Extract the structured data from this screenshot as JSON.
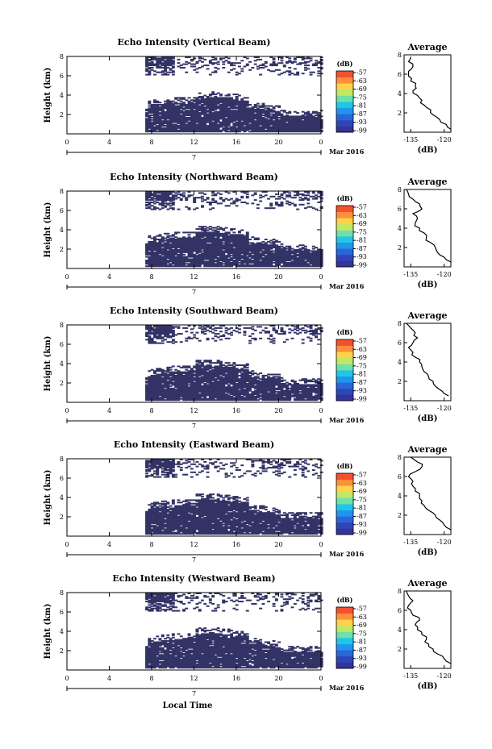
{
  "colors": {
    "echo": "#333366",
    "scale": [
      "#333399",
      "#2f46b8",
      "#2a66d8",
      "#1f95ee",
      "#20c6e8",
      "#6fe0a8",
      "#c0e866",
      "#ffd24a",
      "#ff8f3a",
      "#f5502e"
    ]
  },
  "chart_data": [
    {
      "type": "heatmap",
      "title": "Echo Intensity (Vertical Beam)",
      "ylabel": "Height (km)",
      "xticks": [
        "0",
        "4",
        "8",
        "12",
        "16",
        "20",
        "0"
      ],
      "yticks": [
        "8",
        "6",
        "4",
        "2"
      ],
      "xlim": [
        0,
        24
      ],
      "ylim": [
        0,
        8
      ],
      "date_tick": "7",
      "month_label": "Mar 2016",
      "colorbar": {
        "unit": "(dB)",
        "ticks": [
          "-57",
          "-63",
          "-69",
          "-75",
          "-81",
          "-87",
          "-93",
          "-99"
        ]
      },
      "average": {
        "title": "Average",
        "xlabel": "(dB)",
        "xticks": [
          "-135",
          "-120"
        ],
        "yticks": [
          "8",
          "6",
          "4",
          "2"
        ],
        "xlim": [
          -138,
          -117
        ],
        "height": [
          0.3,
          0.8,
          1.3,
          1.8,
          2.3,
          2.8,
          3.3,
          3.8,
          4.3,
          4.8,
          5.3,
          5.8,
          6.3,
          6.8,
          7.3,
          7.8
        ],
        "db": [
          -117,
          -119,
          -122,
          -125,
          -126,
          -129,
          -130,
          -132,
          -134,
          -133,
          -135,
          -136,
          -136,
          -134,
          -136,
          -135
        ]
      }
    },
    {
      "type": "heatmap",
      "title": "Echo Intensity (Northward Beam)",
      "ylabel": "Height (km)",
      "xticks": [
        "0",
        "4",
        "8",
        "12",
        "16",
        "20",
        "0"
      ],
      "yticks": [
        "8",
        "6",
        "4",
        "2"
      ],
      "xlim": [
        0,
        24
      ],
      "ylim": [
        0,
        8
      ],
      "date_tick": "7",
      "month_label": "Mar 2016",
      "colorbar": {
        "unit": "(dB)",
        "ticks": [
          "-57",
          "-63",
          "-69",
          "-75",
          "-81",
          "-87",
          "-93",
          "-99"
        ]
      },
      "average": {
        "title": "Average",
        "xlabel": "(dB)",
        "xticks": [
          "-135",
          "-120"
        ],
        "yticks": [
          "8",
          "6",
          "4",
          "2"
        ],
        "xlim": [
          -138,
          -117
        ],
        "height": [
          0.5,
          1.0,
          1.5,
          2.0,
          2.5,
          3.0,
          3.5,
          4.0,
          4.5,
          5.0,
          5.5,
          6.0,
          6.5,
          7.0,
          7.5,
          8.0
        ],
        "db": [
          -117,
          -120,
          -123,
          -124,
          -126,
          -128,
          -129,
          -131,
          -133,
          -132,
          -134,
          -130,
          -131,
          -134,
          -136,
          -137
        ]
      }
    },
    {
      "type": "heatmap",
      "title": "Echo Intensity (Southward Beam)",
      "ylabel": "Height (km)",
      "xticks": [
        "0",
        "4",
        "8",
        "12",
        "16",
        "20",
        "0"
      ],
      "yticks": [
        "8",
        "6",
        "4",
        "2"
      ],
      "xlim": [
        0,
        24
      ],
      "ylim": [
        0,
        8
      ],
      "date_tick": "7",
      "month_label": "Mar 2016",
      "colorbar": {
        "unit": "(dB)",
        "ticks": [
          "-57",
          "-63",
          "-69",
          "-75",
          "-81",
          "-87",
          "-93",
          "-99"
        ]
      },
      "average": {
        "title": "Average",
        "xlabel": "(dB)",
        "xticks": [
          "-135",
          "-120"
        ],
        "yticks": [
          "8",
          "6",
          "4",
          "2"
        ],
        "xlim": [
          -138,
          -117
        ],
        "height": [
          0.5,
          1.0,
          1.5,
          2.0,
          2.5,
          3.0,
          3.5,
          4.0,
          4.5,
          5.0,
          5.5,
          6.0,
          6.5,
          7.0,
          7.5,
          8.0
        ],
        "db": [
          -118,
          -121,
          -124,
          -125,
          -127,
          -129,
          -130,
          -131,
          -133,
          -134,
          -136,
          -134,
          -132,
          -133,
          -135,
          -137
        ]
      }
    },
    {
      "type": "heatmap",
      "title": "Echo Intensity (Eastward Beam)",
      "ylabel": "Height (km)",
      "xticks": [
        "0",
        "4",
        "8",
        "12",
        "16",
        "20",
        "0"
      ],
      "yticks": [
        "8",
        "6",
        "4",
        "2"
      ],
      "xlim": [
        0,
        24
      ],
      "ylim": [
        0,
        8
      ],
      "date_tick": "7",
      "month_label": "Mar 2016",
      "colorbar": {
        "unit": "(dB)",
        "ticks": [
          "-57",
          "-63",
          "-69",
          "-75",
          "-81",
          "-87",
          "-93",
          "-99"
        ]
      },
      "average": {
        "title": "Average",
        "xlabel": "(dB)",
        "xticks": [
          "-135",
          "-120"
        ],
        "yticks": [
          "8",
          "6",
          "4",
          "2"
        ],
        "xlim": [
          -138,
          -117
        ],
        "height": [
          0.5,
          1.0,
          1.5,
          2.0,
          2.5,
          3.0,
          3.5,
          4.0,
          4.5,
          5.0,
          5.5,
          6.0,
          6.5,
          7.0,
          7.5,
          8.0
        ],
        "db": [
          -117,
          -120,
          -122,
          -124,
          -127,
          -129,
          -130,
          -131,
          -133,
          -134,
          -134,
          -136,
          -133,
          -130,
          -132,
          -135
        ]
      }
    },
    {
      "type": "heatmap",
      "title": "Echo Intensity (Westward Beam)",
      "ylabel": "Height (km)",
      "xticks": [
        "0",
        "4",
        "8",
        "12",
        "16",
        "20",
        "0"
      ],
      "yticks": [
        "8",
        "6",
        "4",
        "2"
      ],
      "xlim": [
        0,
        24
      ],
      "ylim": [
        0,
        8
      ],
      "date_tick": "7",
      "month_label": "Mar 2016",
      "colorbar": {
        "unit": "(dB)",
        "ticks": [
          "-57",
          "-63",
          "-69",
          "-75",
          "-81",
          "-87",
          "-93",
          "-99"
        ]
      },
      "average": {
        "title": "Average",
        "xlabel": "(dB)",
        "xticks": [
          "-135",
          "-120"
        ],
        "yticks": [
          "8",
          "6",
          "4",
          "2"
        ],
        "xlim": [
          -138,
          -117
        ],
        "height": [
          0.5,
          1.0,
          1.5,
          2.0,
          2.5,
          3.0,
          3.5,
          4.0,
          4.5,
          5.0,
          5.5,
          6.0,
          6.5,
          7.0,
          7.5,
          8.0
        ],
        "db": [
          -117,
          -120,
          -123,
          -125,
          -127,
          -128,
          -130,
          -132,
          -133,
          -131,
          -134,
          -135,
          -136,
          -134,
          -136,
          -137
        ]
      }
    }
  ],
  "footer": {
    "xlabel": "Local Time"
  }
}
